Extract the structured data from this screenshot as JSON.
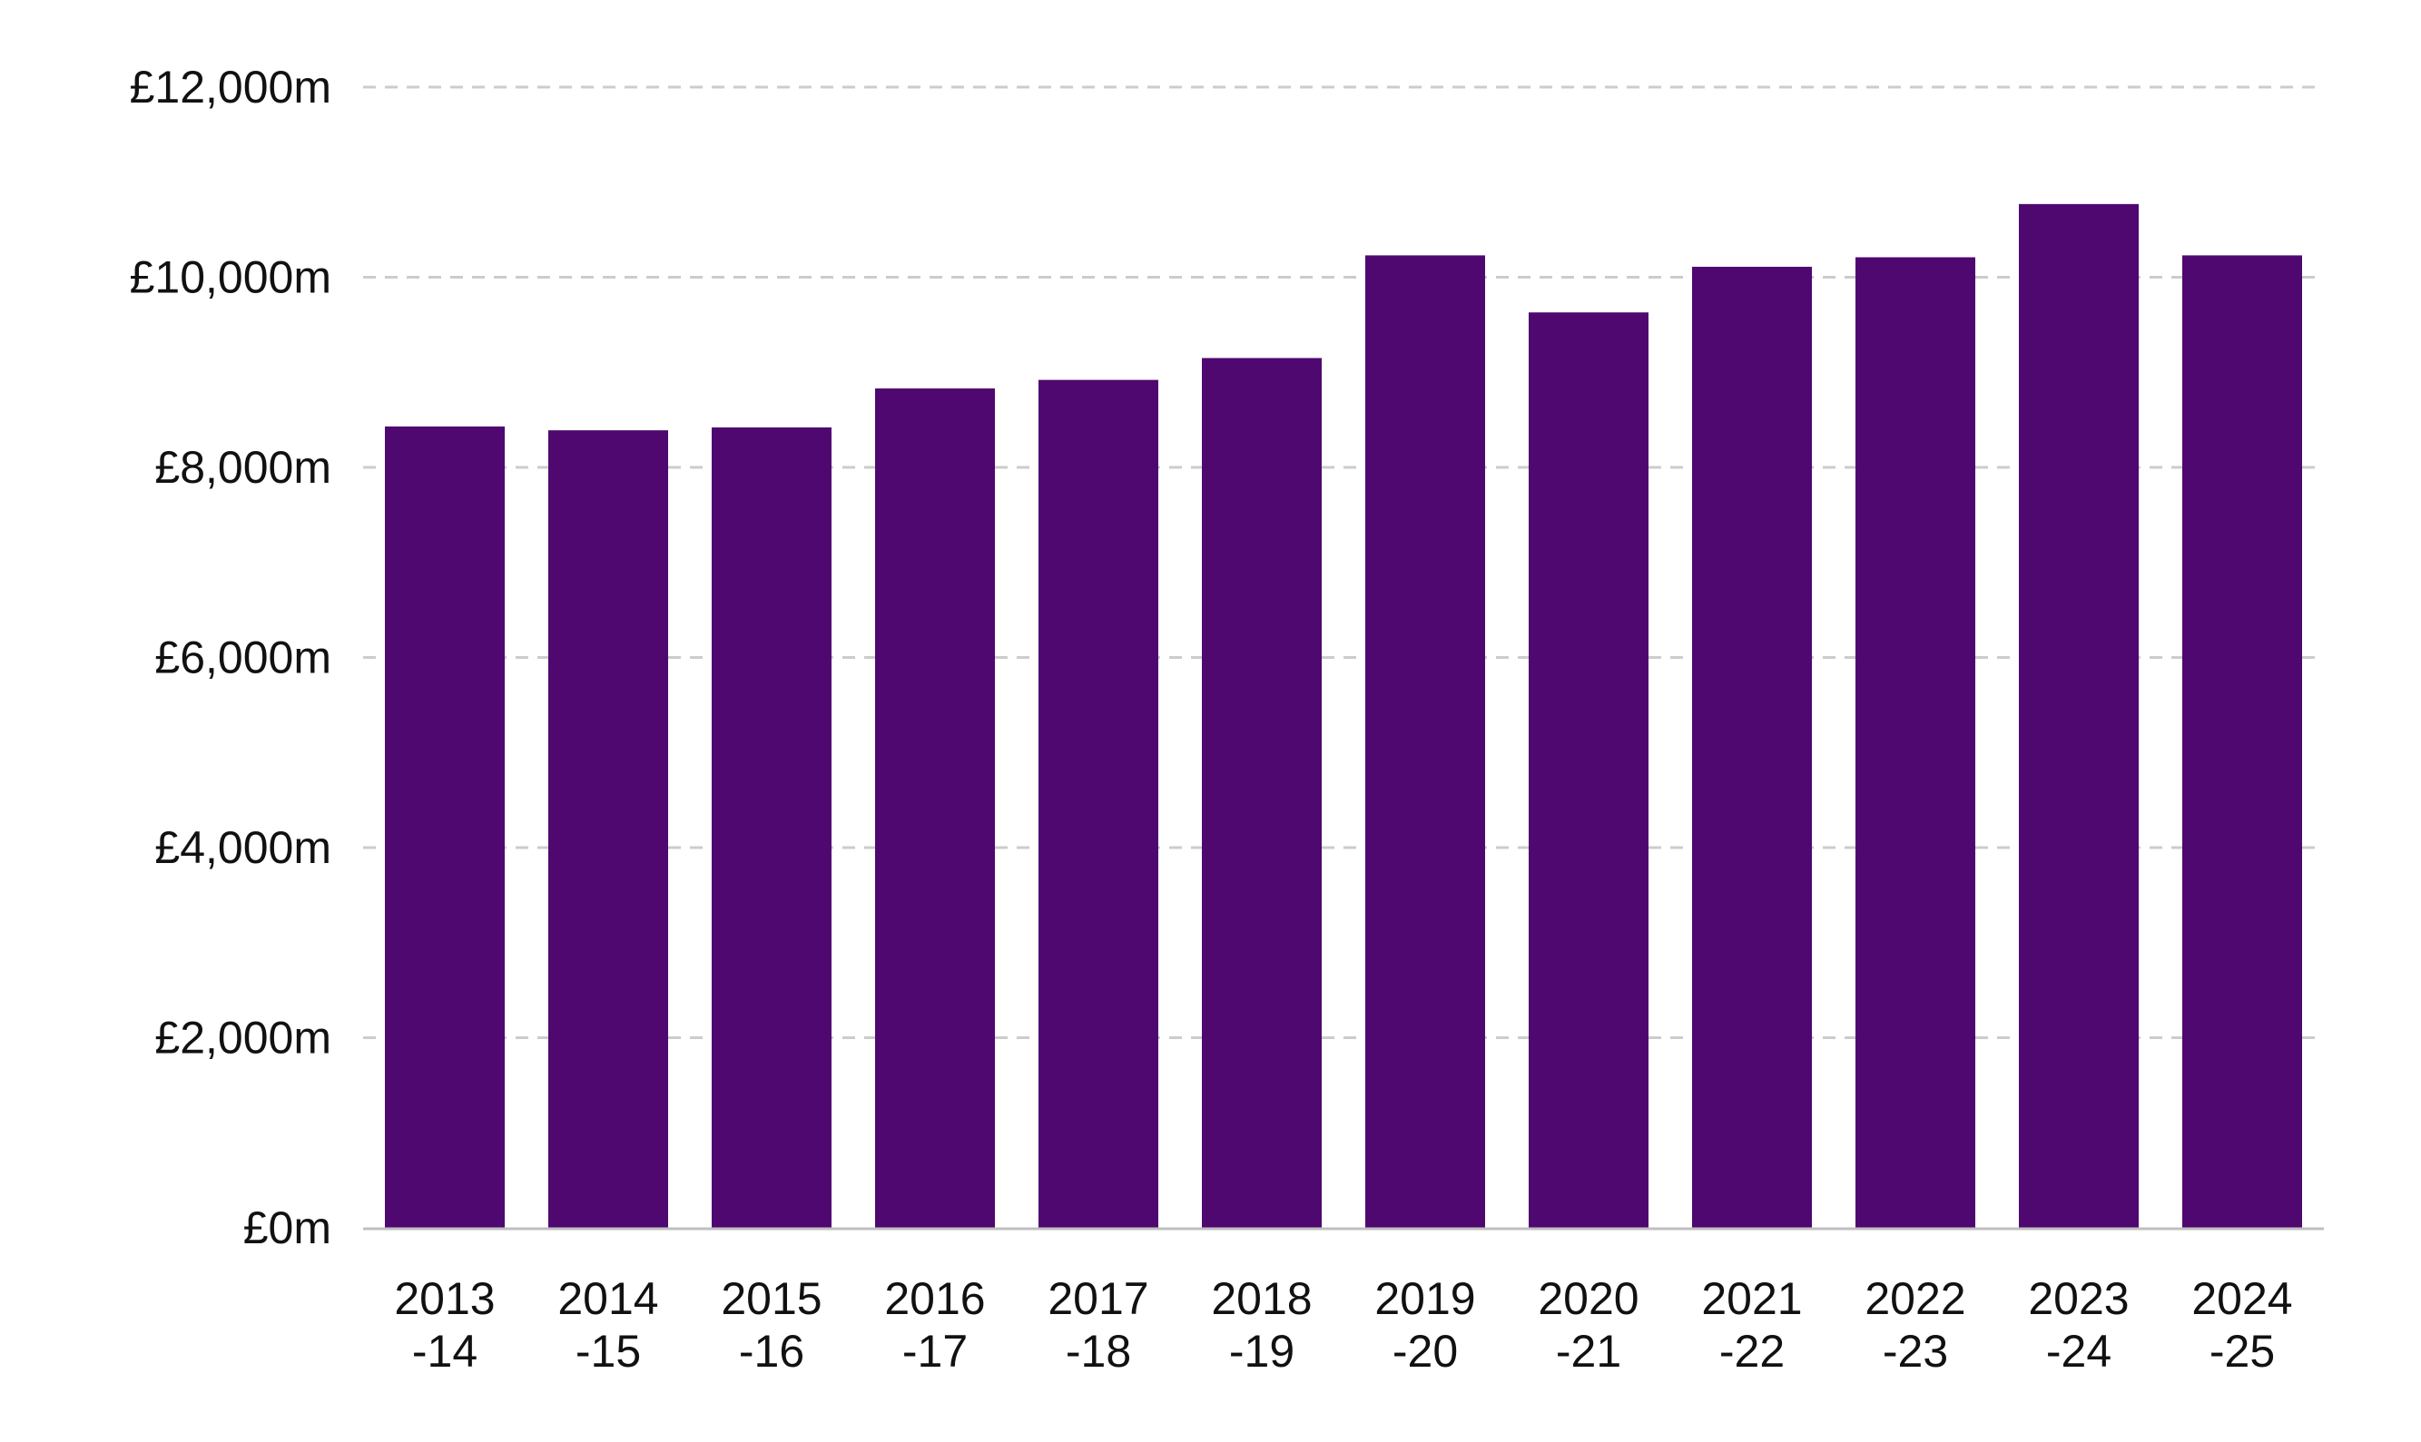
{
  "chart_data": {
    "type": "bar",
    "title": "",
    "xlabel": "",
    "ylabel": "",
    "categories": [
      [
        "2013",
        "-14"
      ],
      [
        "2014",
        "-15"
      ],
      [
        "2015",
        "-16"
      ],
      [
        "2016",
        "-17"
      ],
      [
        "2017",
        "-18"
      ],
      [
        "2018",
        "-19"
      ],
      [
        "2019",
        "-20"
      ],
      [
        "2020",
        "-21"
      ],
      [
        "2021",
        "-22"
      ],
      [
        "2022",
        "-23"
      ],
      [
        "2023",
        "-24"
      ],
      [
        "2024",
        "-25"
      ]
    ],
    "values": [
      8430,
      8390,
      8420,
      8830,
      8920,
      9150,
      10230,
      9630,
      10110,
      10210,
      10770,
      10230
    ],
    "ylim": [
      0,
      12000
    ],
    "yticks": [
      {
        "value": 0,
        "label": "£0m"
      },
      {
        "value": 2000,
        "label": "£2,000m"
      },
      {
        "value": 4000,
        "label": "£4,000m"
      },
      {
        "value": 6000,
        "label": "£6,000m"
      },
      {
        "value": 8000,
        "label": "£8,000m"
      },
      {
        "value": 10000,
        "label": "£10,000m"
      },
      {
        "value": 12000,
        "label": "£12,000m"
      }
    ],
    "grid": true,
    "grid_style": "dashed",
    "colors": {
      "bar": "#4E0870",
      "grid": "#CCCCCC",
      "axis": "#BFBFBF",
      "text": "#111111"
    }
  }
}
